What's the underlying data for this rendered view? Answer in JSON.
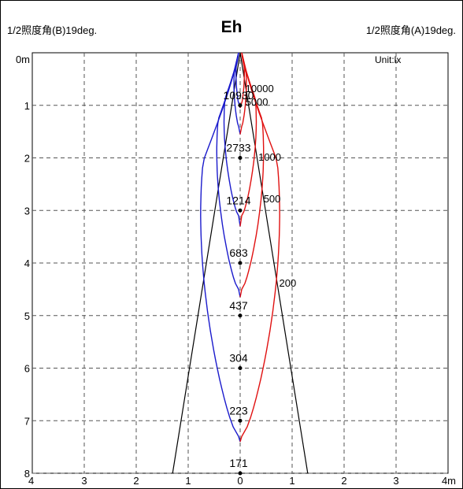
{
  "header": {
    "left_label": "1/2照度角(B)19deg.",
    "title": "Eh",
    "right_label": "1/2照度角(A)19deg.",
    "unit": "Unit:lx"
  },
  "chart_data": {
    "type": "line",
    "title": "Eh",
    "x_ticks": [
      "4",
      "3",
      "2",
      "1",
      "0",
      "1",
      "2",
      "3",
      "4m"
    ],
    "y_ticks": [
      "0m",
      "1",
      "2",
      "3",
      "4",
      "5",
      "6",
      "7",
      "8"
    ],
    "xlim": [
      -4,
      4
    ],
    "ylim": [
      0,
      8
    ],
    "grid": true,
    "beam_half_angle_deg": {
      "A": 19,
      "B": 19
    },
    "beam_lines": [
      {
        "x": [
          0,
          -1.3
        ],
        "y": [
          0,
          8
        ]
      },
      {
        "x": [
          0,
          1.3
        ],
        "y": [
          0,
          8
        ]
      }
    ],
    "center_illuminance": [
      {
        "distance": 1,
        "value": "10930"
      },
      {
        "distance": 2,
        "value": "2733"
      },
      {
        "distance": 3,
        "value": "1214"
      },
      {
        "distance": 4,
        "value": "683"
      },
      {
        "distance": 5,
        "value": "437"
      },
      {
        "distance": 6,
        "value": "304"
      },
      {
        "distance": 7,
        "value": "223"
      },
      {
        "distance": 8,
        "value": "171"
      }
    ],
    "isolux_labels": [
      {
        "value": "10000",
        "x": 0.1,
        "y": 0.75
      },
      {
        "value": "5000",
        "x": 0.1,
        "y": 1.0
      },
      {
        "value": "1000",
        "x": 0.35,
        "y": 2.05
      },
      {
        "value": "500",
        "x": 0.45,
        "y": 2.85
      },
      {
        "value": "200",
        "x": 0.75,
        "y": 4.45
      }
    ],
    "series": [
      {
        "side": "B",
        "color": "#1a1acc",
        "contours": [
          {
            "level": 10000,
            "tip_y": 0.95,
            "half_width": 0.05,
            "closure_y": 1.05
          },
          {
            "level": 5000,
            "tip_y": 1.4,
            "half_width": 0.09,
            "closure_y": 1.55
          },
          {
            "level": 1000,
            "tip_y": 3.1,
            "half_width": 0.28,
            "closure_y": 3.3
          },
          {
            "level": 500,
            "tip_y": 4.5,
            "half_width": 0.42,
            "closure_y": 4.65
          },
          {
            "level": 200,
            "tip_y": 7.3,
            "half_width": 0.73,
            "closure_y": 7.4
          }
        ]
      },
      {
        "side": "A",
        "color": "#e01010",
        "contours": [
          {
            "level": 10000,
            "tip_y": 0.95,
            "half_width": 0.05,
            "closure_y": 1.05
          },
          {
            "level": 5000,
            "tip_y": 1.4,
            "half_width": 0.09,
            "closure_y": 1.55
          },
          {
            "level": 1000,
            "tip_y": 3.1,
            "half_width": 0.28,
            "closure_y": 3.3
          },
          {
            "level": 500,
            "tip_y": 4.5,
            "half_width": 0.42,
            "closure_y": 4.65
          },
          {
            "level": 200,
            "tip_y": 7.3,
            "half_width": 0.73,
            "closure_y": 7.4
          }
        ]
      }
    ]
  }
}
